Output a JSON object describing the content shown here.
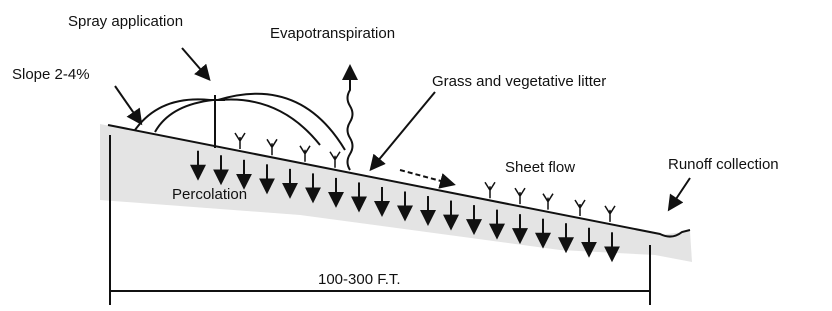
{
  "labels": {
    "spray": "Spray application",
    "evapo": "Evapotranspiration",
    "slope": "Slope 2-4%",
    "grass": "Grass and vegetative litter",
    "sheet": "Sheet flow",
    "runoff": "Runoff collection",
    "percolation": "Percolation",
    "length": "100-300 F.T."
  }
}
